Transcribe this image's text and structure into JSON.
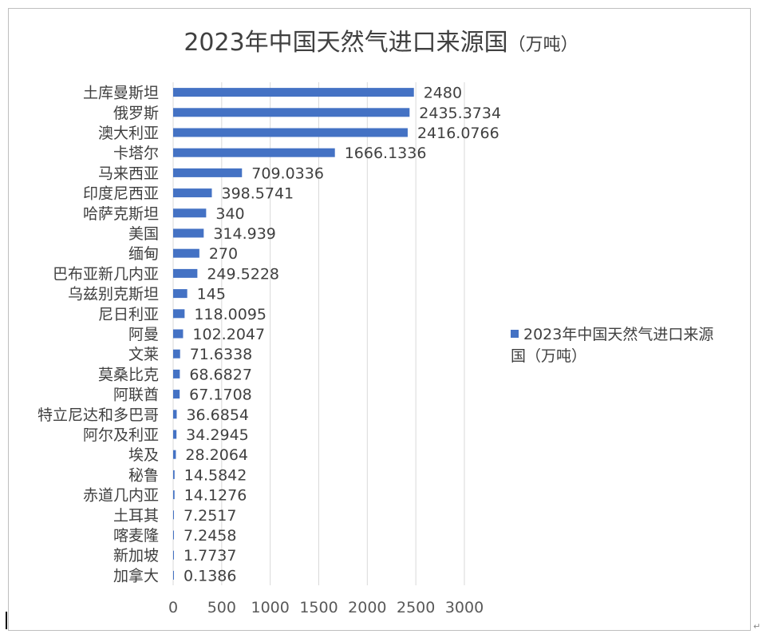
{
  "chart_data": {
    "type": "bar",
    "orientation": "horizontal",
    "title": "2023年中国天然气进口来源国",
    "title_unit": "（万吨）",
    "categories": [
      "土库曼斯坦",
      "俄罗斯",
      "澳大利亚",
      "卡塔尔",
      "马来西亚",
      "印度尼西亚",
      "哈萨克斯坦",
      "美国",
      "缅甸",
      "巴布亚新几内亚",
      "乌兹别克斯坦",
      "尼日利亚",
      "阿曼",
      "文莱",
      "莫桑比克",
      "阿联酋",
      "特立尼达和多巴哥",
      "阿尔及利亚",
      "埃及",
      "秘鲁",
      "赤道几内亚",
      "土耳其",
      "喀麦隆",
      "新加坡",
      "加拿大"
    ],
    "series": [
      {
        "name": "2023年中国天然气进口来源国（万吨）",
        "values": [
          2480,
          2435.3734,
          2416.0766,
          1666.1336,
          709.0336,
          398.5741,
          340,
          314.939,
          270,
          249.5228,
          145,
          118.0095,
          102.2047,
          71.6338,
          68.6827,
          67.1708,
          36.6854,
          34.2945,
          28.2064,
          14.5842,
          14.1276,
          7.2517,
          7.2458,
          1.7737,
          0.1386
        ],
        "labels": [
          "2480",
          "2435.3734",
          "2416.0766",
          "1666.1336",
          "709.0336",
          "398.5741",
          "340",
          "314.939",
          "270",
          "249.5228",
          "145",
          "118.0095",
          "102.2047",
          "71.6338",
          "68.6827",
          "67.1708",
          "36.6854",
          "34.2945",
          "28.2064",
          "14.5842",
          "14.1276",
          "7.2517",
          "7.2458",
          "1.7737",
          "0.1386"
        ]
      }
    ],
    "xlim": [
      0,
      3000
    ],
    "xticks": [
      "0",
      "500",
      "1000",
      "1500",
      "2000",
      "2500",
      "3000"
    ],
    "grid": true,
    "legend_position": "right",
    "bar_color": "#4472c4"
  },
  "legend": {
    "line1": "2023年中国天然气进口来源",
    "line2": "国（万吨）"
  }
}
